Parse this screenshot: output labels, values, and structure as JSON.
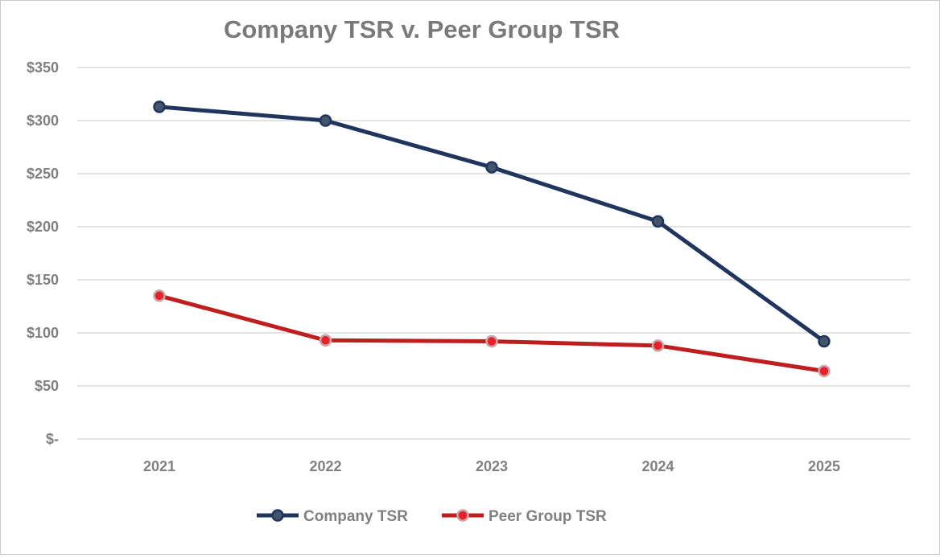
{
  "chart_data": {
    "type": "line",
    "title": "Company TSR v. Peer Group TSR",
    "xlabel": "",
    "ylabel": "",
    "categories": [
      "2021",
      "2022",
      "2023",
      "2024",
      "2025"
    ],
    "y_ticks": [
      0,
      50,
      100,
      150,
      200,
      250,
      300,
      350
    ],
    "y_tick_labels": [
      "$-",
      "$50",
      "$100",
      "$150",
      "$200",
      "$250",
      "$300",
      "$350"
    ],
    "ylim": [
      0,
      350
    ],
    "grid": true,
    "legend_position": "bottom",
    "series": [
      {
        "name": "Company TSR",
        "values": [
          313,
          300,
          256,
          205,
          92
        ],
        "color": "#1f355e",
        "marker_color": "#44546a"
      },
      {
        "name": "Peer Group TSR",
        "values": [
          135,
          93,
          92,
          88,
          64
        ],
        "color": "#be1e1e",
        "marker_color": "#e8202a"
      }
    ]
  }
}
